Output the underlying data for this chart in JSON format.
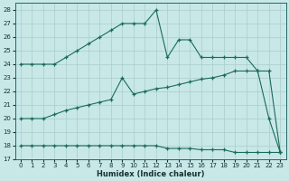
{
  "bg_color": "#c8e8e8",
  "line_color": "#1a6b5a",
  "grid_color": "#aacccc",
  "xlabel": "Humidex (Indice chaleur)",
  "xlim_min": -0.5,
  "xlim_max": 23.5,
  "ylim_min": 17,
  "ylim_max": 28.5,
  "yticks": [
    17,
    18,
    19,
    20,
    21,
    22,
    23,
    24,
    25,
    26,
    27,
    28
  ],
  "xticks": [
    0,
    1,
    2,
    3,
    4,
    5,
    6,
    7,
    8,
    9,
    10,
    11,
    12,
    13,
    14,
    15,
    16,
    17,
    18,
    19,
    20,
    21,
    22,
    23
  ],
  "curve1_x": [
    0,
    1,
    2,
    3,
    4,
    5,
    6,
    7,
    8,
    9,
    10,
    11,
    12,
    13,
    14,
    15,
    16,
    17,
    18,
    19,
    20,
    21,
    22,
    23
  ],
  "curve1_y": [
    24,
    24,
    24,
    24,
    24.5,
    25.0,
    25.5,
    26.0,
    26.5,
    27.0,
    27.0,
    27.0,
    28.0,
    24.5,
    25.8,
    25.8,
    24.5,
    24.5,
    24.5,
    24.5,
    24.5,
    23.5,
    20.0,
    17.5
  ],
  "curve2_x": [
    0,
    1,
    2,
    3,
    4,
    5,
    6,
    7,
    8,
    9,
    10,
    11,
    12,
    13,
    14,
    15,
    16,
    17,
    18,
    19,
    20,
    21,
    22,
    23
  ],
  "curve2_y": [
    20,
    20,
    20,
    20.3,
    20.6,
    20.8,
    21.0,
    21.2,
    21.4,
    23.0,
    21.8,
    22.0,
    22.2,
    22.3,
    22.5,
    22.7,
    22.9,
    23.0,
    23.2,
    23.5,
    23.5,
    23.5,
    23.5,
    17.5
  ],
  "curve3_x": [
    0,
    1,
    2,
    3,
    4,
    5,
    6,
    7,
    8,
    9,
    10,
    11,
    12,
    13,
    14,
    15,
    16,
    17,
    18,
    19,
    20,
    21,
    22,
    23
  ],
  "curve3_y": [
    18,
    18,
    18,
    18,
    18,
    18,
    18,
    18,
    18,
    18,
    18,
    18,
    18,
    17.8,
    17.8,
    17.8,
    17.7,
    17.7,
    17.7,
    17.5,
    17.5,
    17.5,
    17.5,
    17.5
  ]
}
